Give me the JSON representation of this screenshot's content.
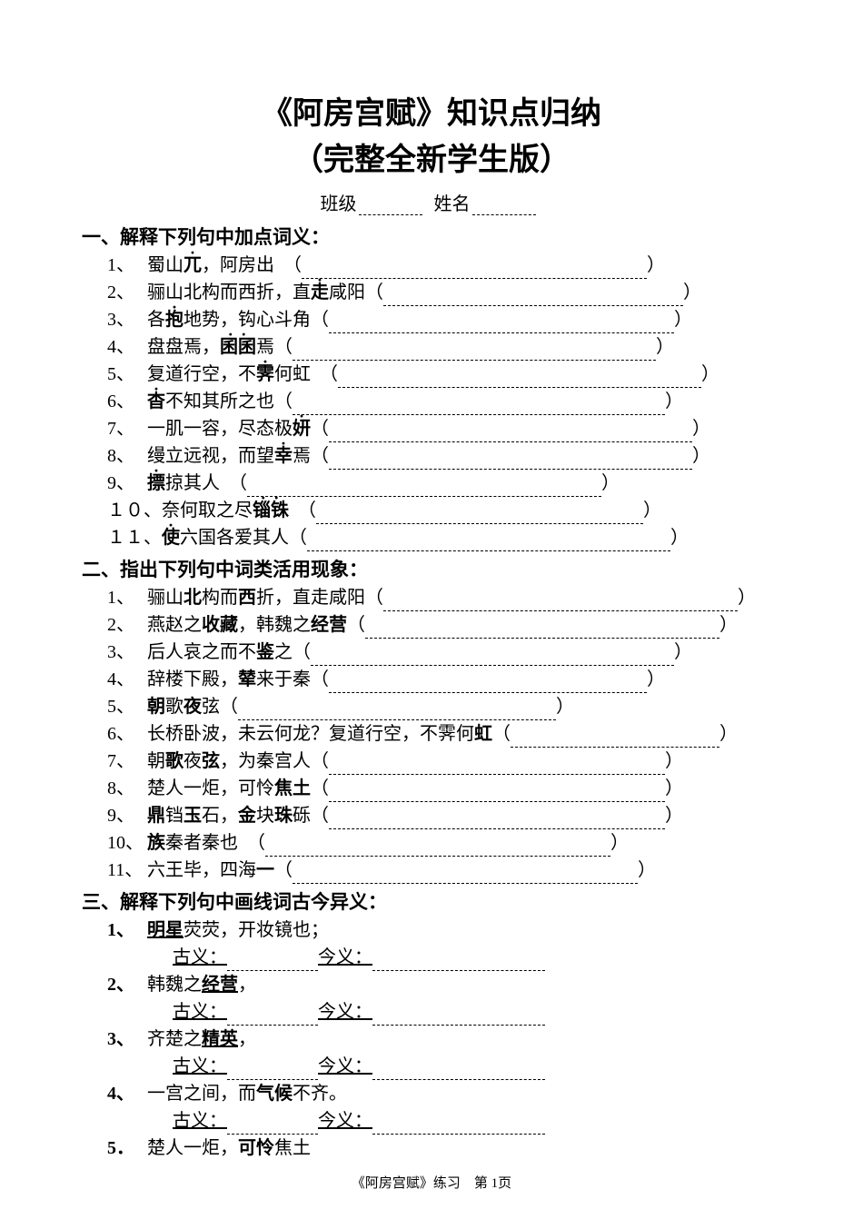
{
  "title": "《阿房宫赋》知识点归纳",
  "subtitle": "（完整全新学生版）",
  "class_label": "班级",
  "name_label": "姓名",
  "section1": {
    "heading": "一、解释下列句中加点词义：",
    "items": [
      {
        "num": "1、",
        "pre": "蜀山",
        "em": "兀",
        "post": "，阿房出　（",
        "blank_w": 380
      },
      {
        "num": "2、",
        "pre": "骊山北构而西折，直",
        "em": "走",
        "post": "咸阳（",
        "blank_w": 330
      },
      {
        "num": "3、",
        "pre": "各",
        "em": "抱",
        "post": "地势，钩心斗角（",
        "blank_w": 380
      },
      {
        "num": "4、",
        "pre": "盘盘焉，",
        "em2": "囷囷",
        "post": "焉（",
        "blank_w": 400
      },
      {
        "num": "5、",
        "pre": "复道行空，不",
        "em": "霁",
        "post": "何虹　（",
        "blank_w": 400
      },
      {
        "num": "6、",
        "pre": "",
        "em": "杳",
        "post": "不知其所之也（",
        "blank_w": 410
      },
      {
        "num": "7、",
        "pre": "一肌一容，尽态极",
        "em": "妍",
        "post": "（",
        "blank_w": 400
      },
      {
        "num": "8、",
        "pre": "缦立远视，而望",
        "em": "幸",
        "post": "焉（",
        "blank_w": 400
      },
      {
        "num": "9、",
        "pre": "",
        "em": "摽",
        "post": "掠其人　（",
        "blank_w": 390
      },
      {
        "num": "１０、",
        "pre": "奈何取之尽",
        "em2": "锱铢",
        "post": "　（",
        "blank_w": 360
      },
      {
        "num": "１１、",
        "pre": "",
        "em": "使",
        "post": "六国各爱其人（",
        "blank_w": 400
      }
    ]
  },
  "section2": {
    "heading": "二、指出下列句中词类活用现象：",
    "items": [
      {
        "num": "1、",
        "parts": [
          "骊山",
          {
            "b": "北"
          },
          "构而",
          {
            "b": "西"
          },
          "折，直走咸阳（"
        ],
        "blank_w": 390
      },
      {
        "num": "2、",
        "parts": [
          "燕赵之",
          {
            "b": "收藏"
          },
          "，韩魏之",
          {
            "b": "经营"
          },
          "（"
        ],
        "blank_w": 390
      },
      {
        "num": "3、",
        "parts": [
          "后人哀之而不",
          {
            "b": "鉴"
          },
          "之（"
        ],
        "blank_w": 400
      },
      {
        "num": "4、",
        "parts": [
          "辞楼下殿，",
          {
            "b": "辇"
          },
          "来于秦（"
        ],
        "blank_w": 350
      },
      {
        "num": "5、",
        "parts": [
          {
            "b": "朝"
          },
          "歌",
          {
            "b": "夜"
          },
          "弦（"
        ],
        "blank_w": 350
      },
      {
        "num": "6、",
        "parts": [
          "长桥卧波，未云何龙？复道行空，不霁何",
          {
            "b": "虹"
          },
          "（"
        ],
        "blank_w": 230
      },
      {
        "num": "7、",
        "parts": [
          "朝",
          {
            "b": "歌"
          },
          "夜",
          {
            "b": "弦"
          },
          "，为秦宫人（"
        ],
        "blank_w": 370
      },
      {
        "num": "8、",
        "parts": [
          "楚人一炬，可怜",
          {
            "b": "焦土"
          },
          "（"
        ],
        "blank_w": 370
      },
      {
        "num": "9、",
        "parts": [
          {
            "b": "鼎"
          },
          "铛",
          {
            "b": "玉"
          },
          "石，",
          {
            "b": "金"
          },
          "块",
          {
            "b": "珠"
          },
          "砾（"
        ],
        "blank_w": 370
      },
      {
        "num": "10、",
        "parts": [
          {
            "b": "族"
          },
          "秦者秦也　（"
        ],
        "blank_w": 380
      },
      {
        "num": "11、",
        "parts": [
          "六王毕，四海",
          {
            "b": "一"
          },
          "（"
        ],
        "blank_w": 380
      }
    ]
  },
  "section3": {
    "heading": "三、解释下列句中画线词古今异义：",
    "anc_label": "古义：",
    "mod_label": "今义：",
    "anc_blank_w": 100,
    "mod_blank_w": 190,
    "items": [
      {
        "num": "1、",
        "parts": [
          {
            "u": "明星"
          },
          "荧荧，开妆镜也；"
        ]
      },
      {
        "num": "2、",
        "parts": [
          "韩魏之",
          {
            "u": "经营"
          },
          "，"
        ]
      },
      {
        "num": "3、",
        "parts": [
          "齐楚之",
          {
            "u": "精英"
          },
          "，"
        ]
      },
      {
        "num": "4、",
        "parts": [
          "一宫之间，而",
          {
            "b": "气候"
          },
          "不齐。"
        ]
      },
      {
        "num": "5．",
        "parts": [
          "楚人一炬，",
          {
            "b": "可怜"
          },
          "焦土"
        ],
        "no_anc": true
      }
    ]
  },
  "footer": "《阿房宫赋》练习　第 1页"
}
